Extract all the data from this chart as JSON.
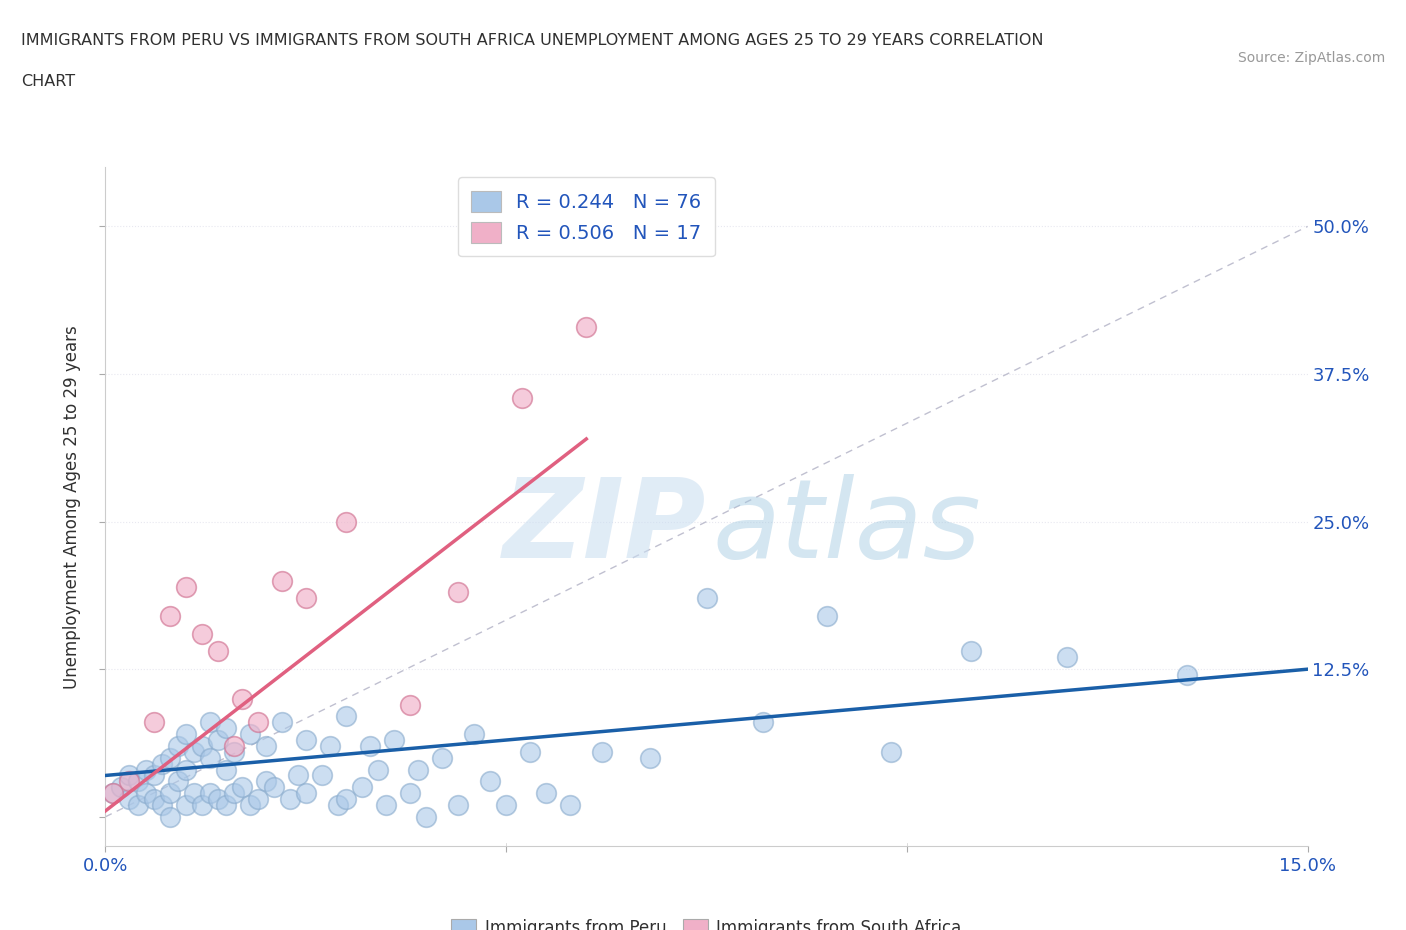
{
  "title_line1": "IMMIGRANTS FROM PERU VS IMMIGRANTS FROM SOUTH AFRICA UNEMPLOYMENT AMONG AGES 25 TO 29 YEARS CORRELATION",
  "title_line2": "CHART",
  "source": "Source: ZipAtlas.com",
  "ylabel": "Unemployment Among Ages 25 to 29 years",
  "xlim": [
    0.0,
    0.15
  ],
  "ylim": [
    -0.025,
    0.55
  ],
  "ytick_positions": [
    0.0,
    0.125,
    0.25,
    0.375,
    0.5
  ],
  "ytick_labels": [
    "",
    "12.5%",
    "25.0%",
    "37.5%",
    "50.0%"
  ],
  "peru_R": 0.244,
  "peru_N": 76,
  "sa_R": 0.506,
  "sa_N": 17,
  "peru_color": "#aac8e8",
  "peru_edge_color": "#88aacc",
  "peru_line_color": "#1a5fa8",
  "sa_color": "#f0b0c8",
  "sa_edge_color": "#d07090",
  "sa_line_color": "#e06080",
  "ref_line_color": "#c0c0d0",
  "legend_text_color": "#2255bb",
  "background_color": "#ffffff",
  "grid_color": "#e8e8f0",
  "title_color": "#303030",
  "axis_label_color": "#303030",
  "tick_color": "#2255bb",
  "peru_scatter_x": [
    0.001,
    0.002,
    0.003,
    0.003,
    0.004,
    0.004,
    0.005,
    0.005,
    0.006,
    0.006,
    0.007,
    0.007,
    0.008,
    0.008,
    0.008,
    0.009,
    0.009,
    0.01,
    0.01,
    0.01,
    0.011,
    0.011,
    0.012,
    0.012,
    0.013,
    0.013,
    0.013,
    0.014,
    0.014,
    0.015,
    0.015,
    0.015,
    0.016,
    0.016,
    0.017,
    0.018,
    0.018,
    0.019,
    0.02,
    0.02,
    0.021,
    0.022,
    0.023,
    0.024,
    0.025,
    0.025,
    0.027,
    0.028,
    0.029,
    0.03,
    0.03,
    0.032,
    0.033,
    0.034,
    0.035,
    0.036,
    0.038,
    0.039,
    0.04,
    0.042,
    0.044,
    0.046,
    0.048,
    0.05,
    0.053,
    0.055,
    0.058,
    0.062,
    0.068,
    0.075,
    0.082,
    0.09,
    0.098,
    0.108,
    0.12,
    0.135
  ],
  "peru_scatter_y": [
    0.02,
    0.025,
    0.015,
    0.035,
    0.01,
    0.03,
    0.02,
    0.04,
    0.015,
    0.035,
    0.01,
    0.045,
    0.02,
    0.05,
    0.0,
    0.03,
    0.06,
    0.01,
    0.04,
    0.07,
    0.02,
    0.055,
    0.01,
    0.06,
    0.02,
    0.05,
    0.08,
    0.015,
    0.065,
    0.01,
    0.04,
    0.075,
    0.02,
    0.055,
    0.025,
    0.01,
    0.07,
    0.015,
    0.03,
    0.06,
    0.025,
    0.08,
    0.015,
    0.035,
    0.02,
    0.065,
    0.035,
    0.06,
    0.01,
    0.085,
    0.015,
    0.025,
    0.06,
    0.04,
    0.01,
    0.065,
    0.02,
    0.04,
    0.0,
    0.05,
    0.01,
    0.07,
    0.03,
    0.01,
    0.055,
    0.02,
    0.01,
    0.055,
    0.05,
    0.185,
    0.08,
    0.17,
    0.055,
    0.14,
    0.135,
    0.12
  ],
  "sa_scatter_x": [
    0.001,
    0.003,
    0.006,
    0.008,
    0.01,
    0.012,
    0.014,
    0.016,
    0.017,
    0.019,
    0.022,
    0.025,
    0.03,
    0.038,
    0.044,
    0.052,
    0.06
  ],
  "sa_scatter_y": [
    0.02,
    0.03,
    0.08,
    0.17,
    0.195,
    0.155,
    0.14,
    0.06,
    0.1,
    0.08,
    0.2,
    0.185,
    0.25,
    0.095,
    0.19,
    0.355,
    0.415
  ],
  "peru_trend_x0": 0.0,
  "peru_trend_x1": 0.15,
  "peru_trend_y0": 0.035,
  "peru_trend_y1": 0.125,
  "sa_trend_x0": 0.0,
  "sa_trend_x1": 0.06,
  "sa_trend_y0": 0.005,
  "sa_trend_y1": 0.32,
  "ref_line_x0": 0.0,
  "ref_line_x1": 0.15,
  "ref_line_y0": 0.0,
  "ref_line_y1": 0.5
}
